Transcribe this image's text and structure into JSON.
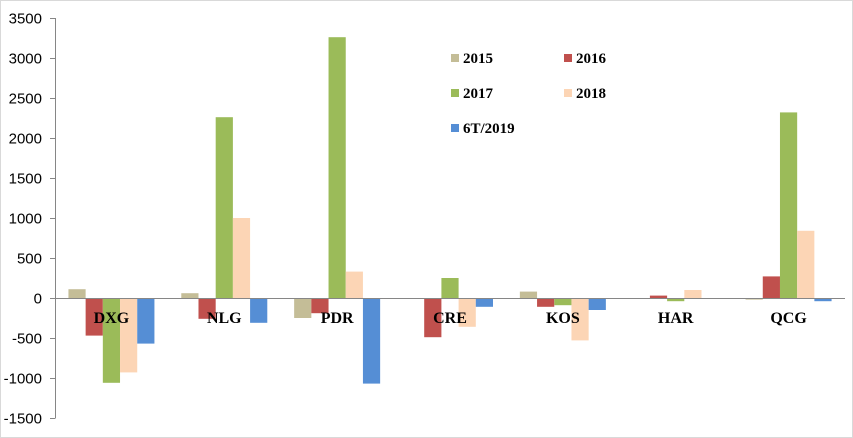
{
  "chart_data": {
    "type": "bar",
    "categories": [
      "DXG",
      "NLG",
      "PDR",
      "CRE",
      "KOS",
      "HAR",
      "QCG"
    ],
    "series": [
      {
        "name": "2015",
        "color": "#C4BD97",
        "values": [
          110,
          60,
          -250,
          0,
          80,
          0,
          -20
        ]
      },
      {
        "name": "2016",
        "color": "#C0504D",
        "values": [
          -470,
          -260,
          -190,
          -490,
          -110,
          30,
          270
        ]
      },
      {
        "name": "2017",
        "color": "#9BBB59",
        "values": [
          -1060,
          2260,
          3260,
          250,
          -90,
          -40,
          2320
        ]
      },
      {
        "name": "2018",
        "color": "#FCD5B5",
        "values": [
          -930,
          1000,
          330,
          -360,
          -530,
          100,
          840
        ]
      },
      {
        "name": "6T/2019",
        "color": "#558ED5",
        "values": [
          -570,
          -310,
          -1070,
          -110,
          -150,
          0,
          -40
        ]
      }
    ],
    "ylim": [
      -1500,
      3500
    ],
    "yticks": [
      3500,
      3000,
      2500,
      2000,
      1500,
      1000,
      500,
      0,
      -500,
      -1000,
      -1500
    ],
    "grid": false,
    "legend": "inside-top-center"
  }
}
